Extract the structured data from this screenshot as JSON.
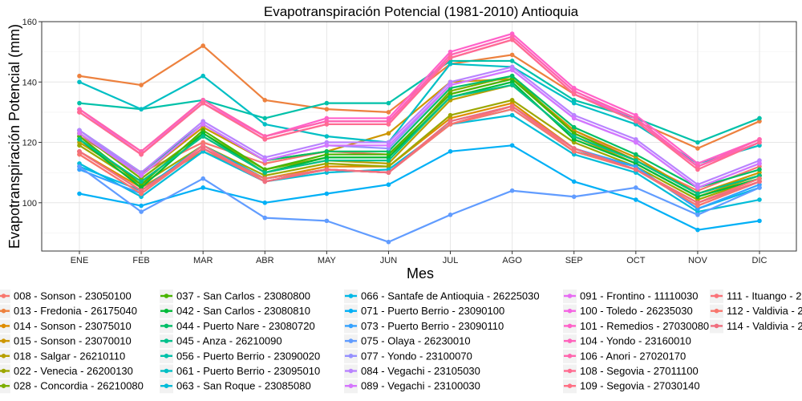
{
  "chart_data": {
    "type": "line",
    "title": "Evapotranspiración Potencial (1981-2010)  Antioquia",
    "xlabel": "Mes",
    "ylabel": "Evapotranspiración Potencial  (mm)",
    "categories": [
      "ENE",
      "FEB",
      "MAR",
      "ABR",
      "MAY",
      "JUN",
      "JUL",
      "AGO",
      "SEP",
      "OCT",
      "NOV",
      "DIC"
    ],
    "ylim": [
      84,
      160
    ],
    "yticks": [
      100,
      120,
      140,
      160
    ],
    "grid": true,
    "legend_position": "bottom",
    "series": [
      {
        "name": "008 - Sonson - 23050100",
        "color": "#F8766D",
        "values": [
          122,
          110,
          120,
          113,
          117,
          116,
          136,
          141,
          124,
          114,
          104,
          112
        ]
      },
      {
        "name": "013 - Fredonia - 26175040",
        "color": "#ED813E",
        "values": [
          142,
          139,
          152,
          134,
          131,
          130,
          146,
          149,
          136,
          127,
          118,
          127
        ]
      },
      {
        "name": "014 - Sonson - 23075010",
        "color": "#DE8C00",
        "values": [
          117,
          105,
          117,
          108,
          112,
          112,
          128,
          133,
          118,
          111,
          100,
          107
        ]
      },
      {
        "name": "015 - Sonson - 23070010",
        "color": "#CD9600",
        "values": [
          123,
          109,
          125,
          114,
          117,
          123,
          140,
          141,
          124,
          115,
          103,
          110
        ]
      },
      {
        "name": "018 - Salgar - 26210110",
        "color": "#B79F00",
        "values": [
          120,
          107,
          122,
          110,
          114,
          113,
          134,
          139,
          122,
          113,
          102,
          109
        ]
      },
      {
        "name": "022 - Venecia - 26200130",
        "color": "#9DA700",
        "values": [
          119,
          106,
          119,
          109,
          113,
          112,
          129,
          134,
          120,
          112,
          101,
          108
        ]
      },
      {
        "name": "028 - Concordia - 26210080",
        "color": "#7CAE00",
        "values": [
          123,
          108,
          123,
          111,
          115,
          115,
          137,
          142,
          123,
          114,
          103,
          109
        ]
      },
      {
        "name": "037 - San Carlos - 23080800",
        "color": "#49B500",
        "values": [
          122,
          106,
          124,
          111,
          116,
          116,
          136,
          141,
          123,
          114,
          103,
          109
        ]
      },
      {
        "name": "042 - San Carlos - 23080810",
        "color": "#00BA38",
        "values": [
          121,
          105,
          123,
          110,
          115,
          115,
          135,
          140,
          121,
          113,
          102,
          108
        ]
      },
      {
        "name": "044 - Puerto Nare - 23080720",
        "color": "#00BE67",
        "values": [
          124,
          110,
          126,
          114,
          117,
          117,
          138,
          142,
          125,
          116,
          105,
          111
        ]
      },
      {
        "name": "045 - Anza - 26210090",
        "color": "#00C08B",
        "values": [
          121,
          107,
          122,
          110,
          114,
          114,
          135,
          139,
          122,
          114,
          103,
          109
        ]
      },
      {
        "name": "056 - Puerto Berrio - 23090020",
        "color": "#00C1A9",
        "values": [
          133,
          131,
          134,
          128,
          133,
          133,
          147,
          147,
          134,
          128,
          120,
          128
        ]
      },
      {
        "name": "061 - Puerto Berrio - 23095010",
        "color": "#00BFC4",
        "values": [
          140,
          131,
          142,
          126,
          122,
          120,
          146,
          145,
          133,
          126,
          113,
          119
        ]
      },
      {
        "name": "063 - San Roque - 23085080",
        "color": "#00BCD8",
        "values": [
          113,
          102,
          117,
          107,
          110,
          111,
          126,
          129,
          116,
          110,
          97,
          101
        ]
      },
      {
        "name": "066 - Santafe de Antioquia - 26225030",
        "color": "#00B8E7",
        "values": [
          112,
          104,
          119,
          108,
          111,
          110,
          126,
          131,
          117,
          112,
          98,
          105
        ]
      },
      {
        "name": "071 - Puerto Berrio - 23090100",
        "color": "#00B0F6",
        "values": [
          103,
          99,
          105,
          100,
          103,
          106,
          117,
          119,
          107,
          101,
          91,
          94
        ]
      },
      {
        "name": "073 - Puerto Berrio - 23090110",
        "color": "#35A2FF",
        "values": [
          111,
          103,
          118,
          108,
          111,
          110,
          127,
          132,
          118,
          112,
          98,
          106
        ]
      },
      {
        "name": "075 - Olaya - 26230010",
        "color": "#619CFF",
        "values": [
          112,
          97,
          108,
          95,
          94,
          87,
          96,
          104,
          102,
          105,
          96,
          105
        ]
      },
      {
        "name": "077 - Yondo - 23100070",
        "color": "#9590FF",
        "values": [
          124,
          109,
          126,
          114,
          119,
          118,
          139,
          144,
          128,
          120,
          105,
          113
        ]
      },
      {
        "name": "084 - Vegachi - 23105030",
        "color": "#B983FF",
        "values": [
          124,
          110,
          127,
          115,
          120,
          120,
          140,
          145,
          129,
          121,
          106,
          114
        ]
      },
      {
        "name": "089 - Vegachi - 23100030",
        "color": "#D575FE",
        "values": [
          123,
          109,
          126,
          114,
          119,
          119,
          139,
          144,
          128,
          120,
          105,
          113
        ]
      },
      {
        "name": "091 - Frontino - 11110030",
        "color": "#E76BF3",
        "values": [
          131,
          116,
          134,
          122,
          127,
          127,
          149,
          155,
          137,
          128,
          112,
          120
        ]
      },
      {
        "name": "100 - Toledo - 26235030",
        "color": "#F564E3",
        "values": [
          130,
          116,
          133,
          122,
          127,
          127,
          148,
          154,
          136,
          128,
          112,
          120
        ]
      },
      {
        "name": "101 - Remedios - 27030080",
        "color": "#FF61C9",
        "values": [
          131,
          117,
          134,
          122,
          128,
          128,
          150,
          156,
          138,
          129,
          113,
          121
        ]
      },
      {
        "name": "104 - Yondo - 23160010",
        "color": "#FF62BC",
        "values": [
          130,
          116,
          133,
          121,
          126,
          126,
          148,
          154,
          136,
          127,
          112,
          120
        ]
      },
      {
        "name": "106 - Anori - 27020170",
        "color": "#FF65AE",
        "values": [
          131,
          117,
          134,
          122,
          127,
          127,
          149,
          155,
          137,
          128,
          112,
          121
        ]
      },
      {
        "name": "108 - Segovia - 27011100",
        "color": "#FF6C91",
        "values": [
          130,
          116,
          133,
          121,
          126,
          126,
          148,
          154,
          136,
          127,
          111,
          120
        ]
      },
      {
        "name": "109 - Segovia - 27030140",
        "color": "#FF6F84",
        "values": [
          116,
          103,
          119,
          107,
          111,
          110,
          126,
          132,
          117,
          111,
          99,
          107
        ]
      },
      {
        "name": "111 - Ituango - 2",
        "color": "#FA7279",
        "values": [
          117,
          104,
          118,
          107,
          111,
          110,
          126,
          132,
          118,
          111,
          100,
          108
        ]
      },
      {
        "name": "112 - Valdivia - 2",
        "color": "#F8766D",
        "values": [
          116,
          103,
          118,
          108,
          111,
          110,
          126,
          131,
          117,
          111,
          99,
          107
        ]
      },
      {
        "name": "114 - Valdivia - 2",
        "color": "#F06E7E",
        "values": [
          117,
          104,
          118,
          107,
          111,
          110,
          127,
          132,
          118,
          111,
          100,
          107
        ]
      }
    ]
  }
}
